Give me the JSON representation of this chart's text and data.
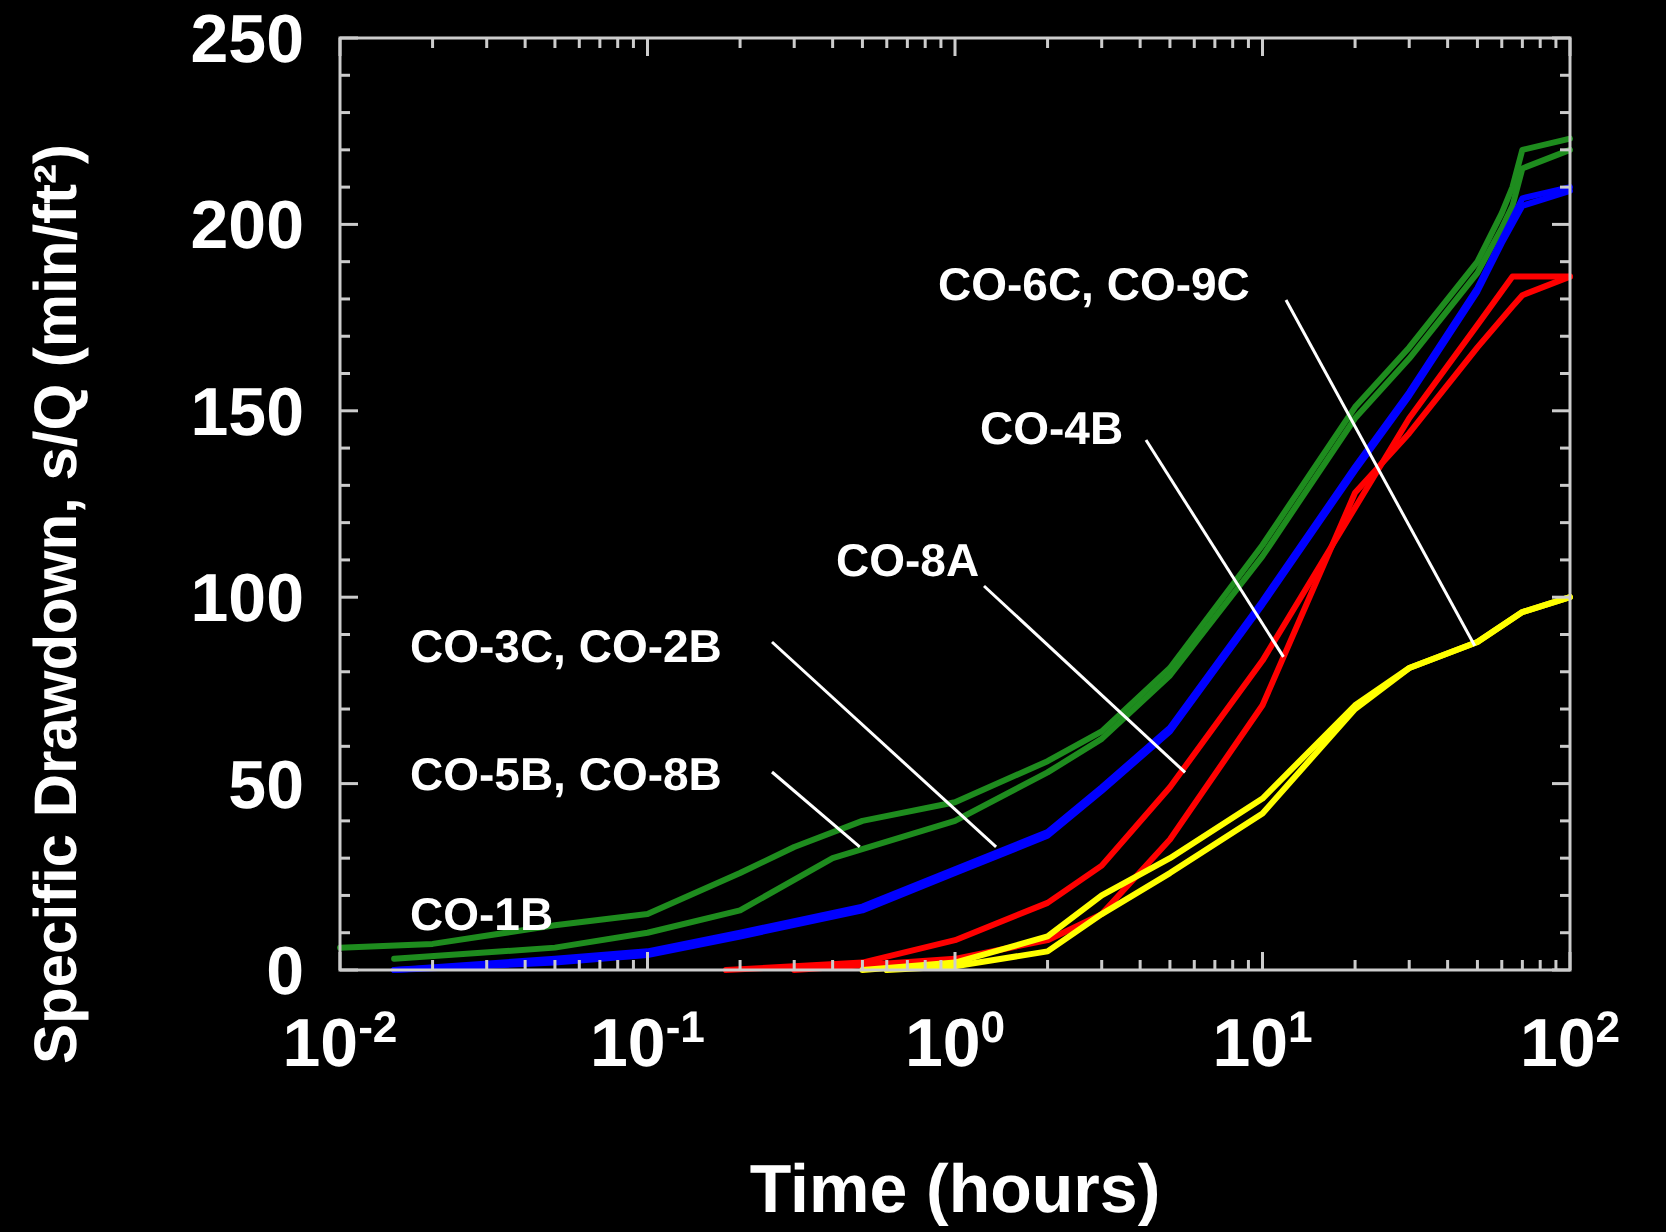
{
  "chart_data": {
    "type": "line",
    "xlabel": "Time (hours)",
    "ylabel": "Specific Drawdown, s/Q  (min/ft²)",
    "log": "x",
    "xlim": [
      0.01,
      100
    ],
    "ylim": [
      0,
      250
    ],
    "xticks": [
      {
        "value": 0.01,
        "label": "10$^{-2}$"
      },
      {
        "value": 0.02,
        "label": null
      },
      {
        "value": 0.03,
        "label": null
      },
      {
        "value": 0.04,
        "label": null
      },
      {
        "value": 0.05,
        "label": null
      },
      {
        "value": 0.06,
        "label": null
      },
      {
        "value": 0.07,
        "label": null
      },
      {
        "value": 0.08,
        "label": null
      },
      {
        "value": 0.09,
        "label": null
      },
      {
        "value": 0.1,
        "label": "10$^{-1}$"
      },
      {
        "value": 0.2,
        "label": null
      },
      {
        "value": 0.3,
        "label": null
      },
      {
        "value": 0.4,
        "label": null
      },
      {
        "value": 0.5,
        "label": null
      },
      {
        "value": 0.6,
        "label": null
      },
      {
        "value": 0.7,
        "label": null
      },
      {
        "value": 0.8,
        "label": null
      },
      {
        "value": 0.9,
        "label": null
      },
      {
        "value": 1,
        "label": "10$^{0}$"
      },
      {
        "value": 2,
        "label": null
      },
      {
        "value": 3,
        "label": null
      },
      {
        "value": 4,
        "label": null
      },
      {
        "value": 5,
        "label": null
      },
      {
        "value": 6,
        "label": null
      },
      {
        "value": 7,
        "label": null
      },
      {
        "value": 8,
        "label": null
      },
      {
        "value": 9,
        "label": null
      },
      {
        "value": 10,
        "label": "10$^{1}$"
      },
      {
        "value": 20,
        "label": null
      },
      {
        "value": 30,
        "label": null
      },
      {
        "value": 40,
        "label": null
      },
      {
        "value": 50,
        "label": null
      },
      {
        "value": 60,
        "label": null
      },
      {
        "value": 70,
        "label": null
      },
      {
        "value": 80,
        "label": null
      },
      {
        "value": 90,
        "label": null
      },
      {
        "value": 100,
        "label": "10$^{2}$"
      }
    ],
    "yticks": [
      0,
      {
        "value": 10,
        "label": null
      },
      {
        "value": 20,
        "label": null
      },
      {
        "value": 30,
        "label": null
      },
      {
        "value": 40,
        "label": null
      },
      50,
      {
        "value": 60,
        "label": null
      },
      {
        "value": 70,
        "label": null
      },
      {
        "value": 80,
        "label": null
      },
      {
        "value": 90,
        "label": null
      },
      100,
      {
        "value": 110,
        "label": null
      },
      {
        "value": 120,
        "label": null
      },
      {
        "value": 130,
        "label": null
      },
      {
        "value": 140,
        "label": null
      },
      150,
      {
        "value": 160,
        "label": null
      },
      {
        "value": 170,
        "label": null
      },
      {
        "value": 180,
        "label": null
      },
      {
        "value": 190,
        "label": null
      },
      200,
      {
        "value": 210,
        "label": null
      },
      {
        "value": 220,
        "label": null
      },
      {
        "value": 230,
        "label": null
      },
      {
        "value": 240,
        "label": null
      },
      250
    ],
    "series": [
      {
        "color": "#1e8c1e",
        "x": [
          0.01,
          0.02,
          0.05,
          0.1,
          0.2,
          0.3,
          0.5,
          1,
          2,
          3,
          5,
          10,
          20,
          30,
          50,
          60,
          65,
          70,
          100
        ],
        "values": [
          6,
          7,
          12,
          15,
          26,
          33,
          40,
          45,
          56,
          64,
          81,
          114,
          151,
          167,
          190,
          203,
          210,
          220,
          223
        ]
      },
      {
        "color": "#1e8c1e",
        "x": [
          0.015,
          0.05,
          0.1,
          0.2,
          0.4,
          1,
          2,
          3,
          5,
          10,
          20,
          30,
          50,
          60,
          65,
          70,
          100
        ],
        "values": [
          3,
          6,
          10,
          16,
          30,
          40,
          53,
          62,
          79,
          111,
          148,
          164,
          187,
          199,
          205,
          215,
          220
        ]
      },
      {
        "color": "#0000ff",
        "x": [
          0.015,
          0.05,
          0.1,
          0.2,
          0.5,
          1,
          2,
          3,
          5,
          10,
          20,
          30,
          50,
          60,
          70,
          100
        ],
        "values": [
          0,
          3,
          5,
          10,
          17,
          27,
          37,
          49,
          65,
          99,
          135,
          155,
          183,
          196,
          207,
          210
        ]
      },
      {
        "color": "#0000ff",
        "x": [
          0.015,
          0.05,
          0.1,
          0.2,
          0.5,
          1,
          2,
          3,
          5,
          10,
          20,
          30,
          50,
          60,
          70,
          100
        ],
        "values": [
          0,
          2,
          4,
          9,
          16,
          26,
          36,
          48,
          64,
          98,
          134,
          154,
          182,
          195,
          205,
          209
        ]
      },
      {
        "color": "#ff0000",
        "x": [
          0.18,
          0.5,
          1,
          2,
          3,
          5,
          10,
          20,
          30,
          50,
          65,
          100
        ],
        "values": [
          0,
          2,
          8,
          18,
          28,
          49,
          83,
          124,
          148,
          173,
          186,
          186
        ]
      },
      {
        "color": "#ff0000",
        "x": [
          0.3,
          1,
          2,
          3,
          5,
          10,
          20,
          30,
          50,
          65,
          70,
          100
        ],
        "values": [
          0,
          3,
          8,
          15,
          35,
          71,
          128,
          144,
          167,
          178,
          181,
          186
        ]
      },
      {
        "color": "#ffff00",
        "x": [
          0.5,
          1,
          2,
          3,
          5,
          10,
          20,
          30,
          50,
          70,
          100
        ],
        "values": [
          0,
          2,
          9,
          20,
          30,
          46,
          71,
          81,
          88,
          96,
          100
        ]
      },
      {
        "color": "#ffff00",
        "x": [
          0.6,
          1,
          2,
          3,
          5,
          10,
          20,
          30,
          50,
          70,
          100
        ],
        "values": [
          0,
          1,
          5,
          15,
          26,
          42,
          70,
          81,
          88,
          96,
          100
        ]
      }
    ],
    "annotations": [
      "CO-1B",
      {
        "text": "CO-5B, CO-8B",
        "x": 0.49,
        "y": 33
      },
      {
        "text": "CO-3C, CO-2B",
        "x": 1.36,
        "y": 33
      },
      {
        "text": "CO-8A",
        "x": 5.6,
        "y": 53
      },
      {
        "text": "CO-4B",
        "x": 11.7,
        "y": 84
      },
      {
        "text": "CO-6C, CO-9C",
        "x": 49,
        "y": 87
      }
    ]
  }
}
